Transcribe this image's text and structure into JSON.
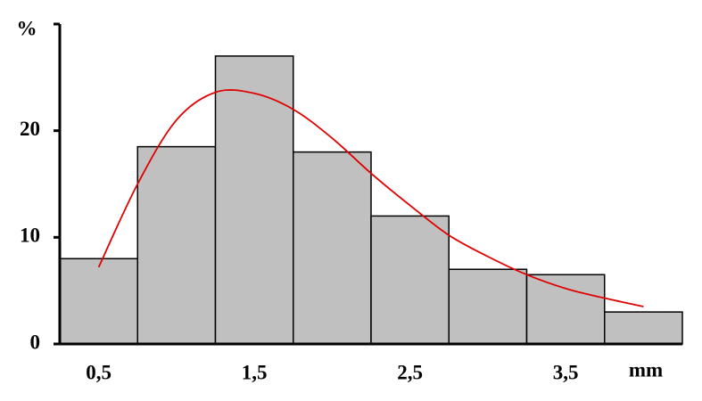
{
  "chart_data": {
    "type": "histogram",
    "y_label": "%",
    "x_label": "mm",
    "bins": [
      0.25,
      0.75,
      1.25,
      1.75,
      2.25,
      2.75,
      3.25,
      3.75,
      4.25
    ],
    "values": [
      8,
      18.5,
      27,
      18,
      12,
      7,
      6.5,
      3
    ],
    "color": "#c0c0c0",
    "xlim": [
      0.25,
      4.25
    ],
    "xticks": [
      {
        "value": 0.5,
        "label": "0,5"
      },
      {
        "value": 1.5,
        "label": "1,5"
      },
      {
        "value": 2.5,
        "label": "2,5"
      },
      {
        "value": 3.5,
        "label": "3,5"
      }
    ],
    "ylim": [
      0,
      30
    ],
    "yticks": [
      0,
      10,
      20
    ],
    "curve": {
      "color": "#e00000",
      "x": [
        0.5,
        0.75,
        1.0,
        1.25,
        1.5,
        1.75,
        2.0,
        2.25,
        2.5,
        2.75,
        3.0,
        3.25,
        3.5,
        3.75,
        4.0
      ],
      "values": [
        7.2,
        15,
        21,
        23.6,
        23.5,
        22,
        19.3,
        16,
        13,
        10.2,
        8.2,
        6.5,
        5.2,
        4.3,
        3.5
      ]
    }
  }
}
